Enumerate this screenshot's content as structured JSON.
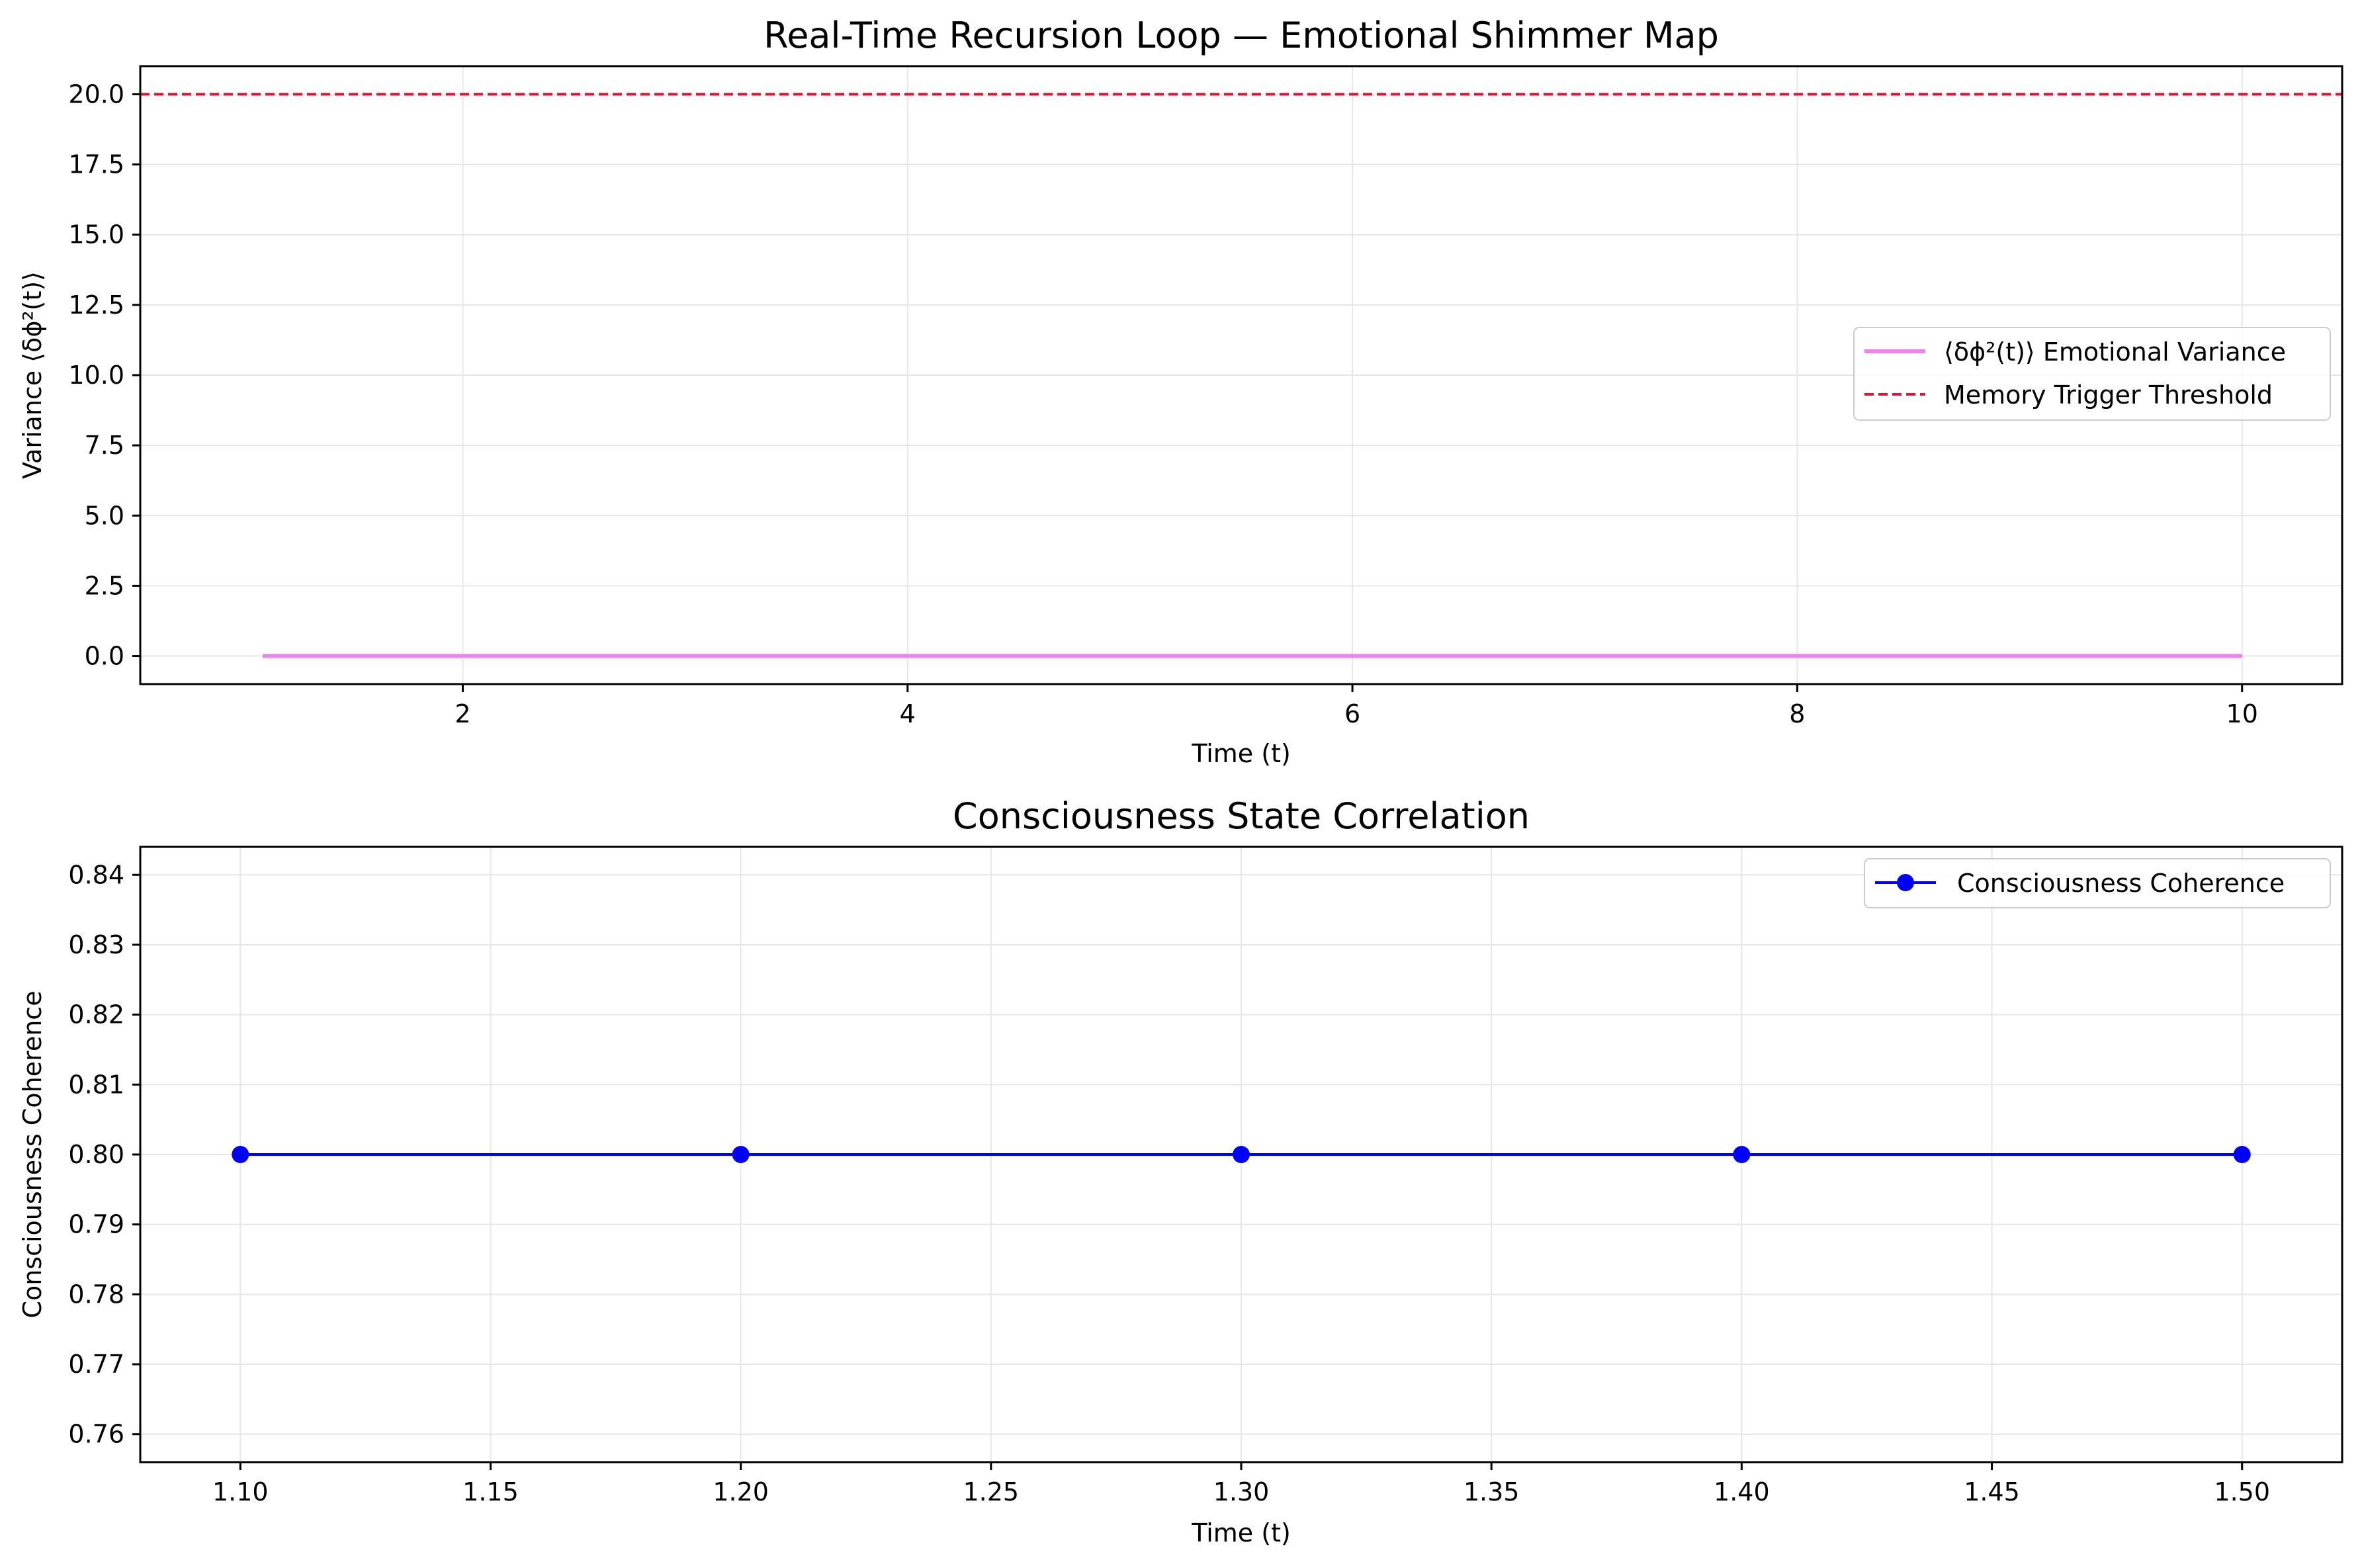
{
  "colors": {
    "variance_line": "#ee82ee",
    "threshold_line": "#dc143c",
    "coherence_line": "#0000ff",
    "grid": "#e6e6e6",
    "axes": "#000000"
  },
  "chart_data": [
    {
      "type": "line",
      "title": "Real-Time Recursion Loop — Emotional Shimmer Map",
      "xlabel": "Time (t)",
      "ylabel": "Variance ⟨δϕ²(t)⟩",
      "xlim": [
        0.55,
        10.45
      ],
      "ylim": [
        -1.0,
        21.0
      ],
      "xticks": [
        2,
        4,
        6,
        8,
        10
      ],
      "xtick_labels": [
        "2",
        "4",
        "6",
        "8",
        "10"
      ],
      "yticks": [
        0.0,
        2.5,
        5.0,
        7.5,
        10.0,
        12.5,
        15.0,
        17.5,
        20.0
      ],
      "ytick_labels": [
        "0.0",
        "2.5",
        "5.0",
        "7.5",
        "10.0",
        "12.5",
        "15.0",
        "17.5",
        "20.0"
      ],
      "grid": true,
      "legend_position": "center-right",
      "series": [
        {
          "name": "⟨δϕ²(t)⟩ Emotional Variance",
          "style": "solid",
          "color": "#ee82ee",
          "x": [
            1.1,
            10.0
          ],
          "y": [
            0.0,
            0.0
          ]
        }
      ],
      "hlines": [
        {
          "name": "Memory Trigger Threshold",
          "y": 20.0,
          "style": "dashed",
          "color": "#dc143c"
        }
      ]
    },
    {
      "type": "line",
      "title": "Consciousness State Correlation",
      "xlabel": "Time (t)",
      "ylabel": "Consciousness Coherence",
      "xlim": [
        1.08,
        1.52
      ],
      "ylim": [
        0.756,
        0.844
      ],
      "xticks": [
        1.1,
        1.15,
        1.2,
        1.25,
        1.3,
        1.35,
        1.4,
        1.45,
        1.5
      ],
      "xtick_labels": [
        "1.10",
        "1.15",
        "1.20",
        "1.25",
        "1.30",
        "1.35",
        "1.40",
        "1.45",
        "1.50"
      ],
      "yticks": [
        0.76,
        0.77,
        0.78,
        0.79,
        0.8,
        0.81,
        0.82,
        0.83,
        0.84
      ],
      "ytick_labels": [
        "0.76",
        "0.77",
        "0.78",
        "0.79",
        "0.80",
        "0.81",
        "0.82",
        "0.83",
        "0.84"
      ],
      "grid": true,
      "legend_position": "top-right",
      "series": [
        {
          "name": "Consciousness Coherence",
          "style": "solid-markers",
          "color": "#0000ff",
          "x": [
            1.1,
            1.2,
            1.3,
            1.4,
            1.5
          ],
          "y": [
            0.8,
            0.8,
            0.8,
            0.8,
            0.8
          ]
        }
      ]
    }
  ]
}
